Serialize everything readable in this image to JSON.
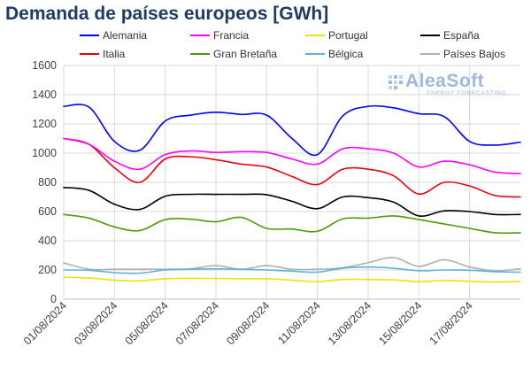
{
  "title": "Demanda de países europeos [GWh]",
  "logo": {
    "name": "AleaSoft",
    "tagline": "ENERGY FORECASTING"
  },
  "chart_data": {
    "type": "line",
    "title": "Demanda de países europeos [GWh]",
    "xlabel": "",
    "ylabel": "",
    "ylim": [
      0,
      1600
    ],
    "yticks": [
      0,
      200,
      400,
      600,
      800,
      1000,
      1200,
      1400,
      1600
    ],
    "x": [
      "01/08/2024",
      "02/08/2024",
      "03/08/2024",
      "04/08/2024",
      "05/08/2024",
      "06/08/2024",
      "07/08/2024",
      "08/08/2024",
      "09/08/2024",
      "10/08/2024",
      "11/08/2024",
      "12/08/2024",
      "13/08/2024",
      "14/08/2024",
      "15/08/2024",
      "16/08/2024",
      "17/08/2024",
      "18/08/2024",
      "19/08/2024"
    ],
    "xticklabels": [
      "01/08/2024",
      "03/08/2024",
      "05/08/2024",
      "07/08/2024",
      "09/08/2024",
      "11/08/2024",
      "13/08/2024",
      "15/08/2024",
      "17/08/2024"
    ],
    "grid": true,
    "legend_position": "top",
    "series": [
      {
        "name": "Alemania",
        "color": "#0000ff",
        "values": [
          1320,
          1315,
          1080,
          1020,
          1220,
          1260,
          1280,
          1265,
          1260,
          1100,
          990,
          1255,
          1320,
          1310,
          1270,
          1250,
          1080,
          1055,
          1075
        ]
      },
      {
        "name": "Francia",
        "color": "#ff00ff",
        "values": [
          1100,
          1060,
          945,
          890,
          990,
          1015,
          1005,
          1010,
          1005,
          960,
          925,
          1030,
          1030,
          1000,
          905,
          945,
          920,
          870,
          860
        ]
      },
      {
        "name": "Portugal",
        "color": "#e6e600",
        "values": [
          150,
          145,
          130,
          125,
          140,
          143,
          142,
          140,
          140,
          130,
          120,
          135,
          135,
          132,
          120,
          128,
          122,
          118,
          122
        ]
      },
      {
        "name": "España",
        "color": "#000000",
        "values": [
          765,
          745,
          650,
          615,
          705,
          718,
          718,
          718,
          715,
          670,
          620,
          700,
          695,
          665,
          570,
          605,
          600,
          580,
          580
        ]
      },
      {
        "name": "Italia",
        "color": "#e8000b",
        "values": [
          1100,
          1060,
          900,
          800,
          960,
          975,
          955,
          925,
          905,
          840,
          785,
          890,
          890,
          845,
          720,
          800,
          775,
          710,
          700
        ]
      },
      {
        "name": "Gran Bretaña",
        "color": "#4e9a06",
        "values": [
          580,
          555,
          495,
          470,
          545,
          548,
          530,
          560,
          485,
          480,
          465,
          550,
          555,
          570,
          545,
          515,
          485,
          455,
          455
        ]
      },
      {
        "name": "Bélgica",
        "color": "#5ab4dc",
        "values": [
          200,
          198,
          182,
          178,
          200,
          205,
          208,
          205,
          200,
          192,
          185,
          212,
          220,
          212,
          195,
          200,
          198,
          188,
          185
        ]
      },
      {
        "name": "Países Bajos",
        "color": "#b0b0b0",
        "values": [
          248,
          205,
          205,
          205,
          205,
          208,
          230,
          205,
          230,
          205,
          205,
          215,
          250,
          285,
          225,
          270,
          220,
          195,
          208
        ]
      }
    ]
  }
}
